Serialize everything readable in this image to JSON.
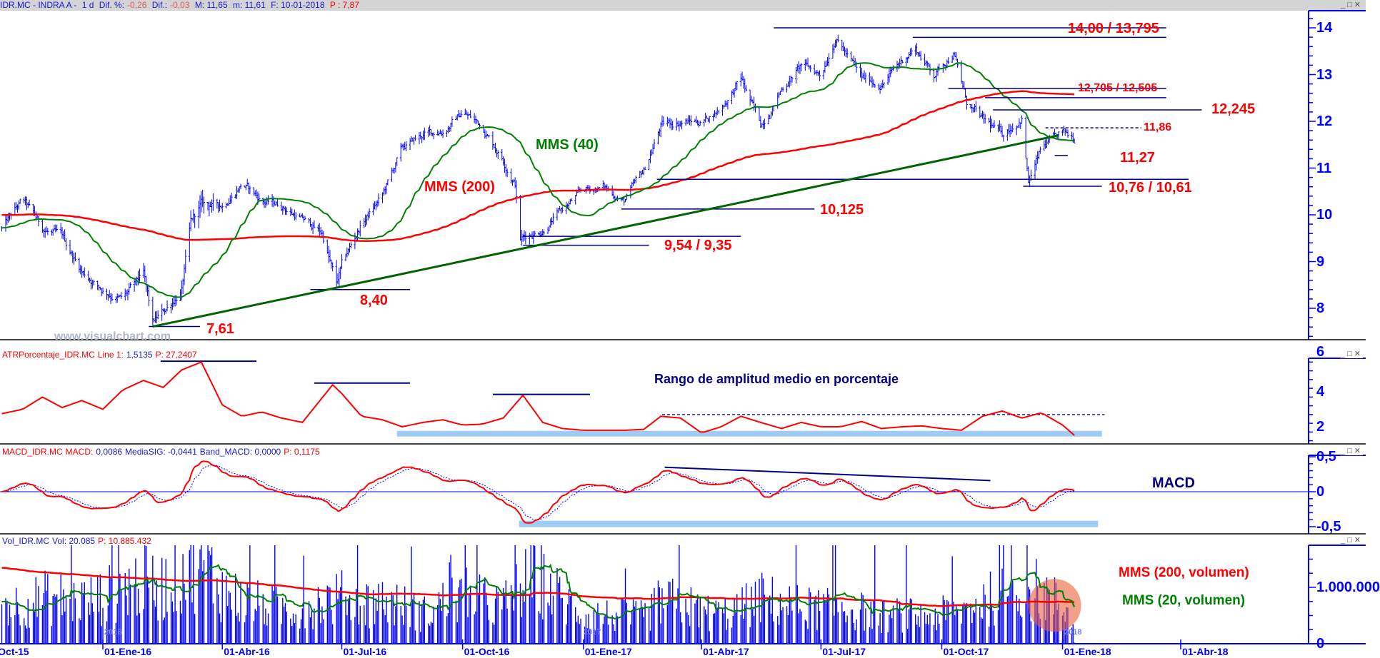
{
  "header": {
    "symbol": "IDR.MC - INDRA A -",
    "period": "1 d",
    "dif_pct_label": "Dif. %:",
    "dif_pct": "-0,26",
    "dif_label": "Dif.:",
    "dif": "-0,03",
    "max_label": "M: 11,65",
    "min_label": "m: 11,61",
    "date_label": "F: 10-01-2018",
    "p_label": "P : 7,87"
  },
  "window_controls": "_□✕",
  "colors": {
    "price_bars": "#0000ff",
    "mms40": "#008000",
    "mms200": "#ff0000",
    "levels": "#000080",
    "trendline": "#006400",
    "atr": "#ff0000",
    "macd": "#ff0000",
    "signal": "#0000ff",
    "volume": "#0000ff",
    "highlight": "#9fcbf5"
  },
  "main": {
    "watermark": "www.visualchart.com",
    "mms40_label": "MMS (40)",
    "mms200_label": "MMS (200)",
    "axis_labels": [
      "14",
      "13",
      "12",
      "11",
      "10",
      "9",
      "8"
    ],
    "levels": [
      {
        "label": "14,00 / 13,795",
        "lines": [
          {
            "price": 14.0,
            "from": "2017-05-26",
            "to": "2018-03-21"
          },
          {
            "price": 13.795,
            "from": "2017-09-09",
            "to": "2018-03-21"
          }
        ]
      },
      {
        "label": "12,705 / 12,505",
        "lines": [
          {
            "price": 12.705,
            "from": "2017-10-06",
            "to": "2018-03-21"
          },
          {
            "price": 12.505,
            "from": "2017-11-03",
            "to": "2018-03-21"
          }
        ]
      },
      {
        "label": "12,245",
        "lines": [
          {
            "price": 12.245,
            "from": "2017-11-09",
            "to": "2018-04-17"
          }
        ]
      },
      {
        "label": "11,86",
        "lines": [
          {
            "price": 11.86,
            "from": "2017-12-19",
            "to": "2018-03-02",
            "dashed": true
          }
        ]
      },
      {
        "label": "11,27",
        "lines": [
          {
            "price": 11.27,
            "from": "2017-12-26",
            "to": "2018-01-05"
          }
        ]
      },
      {
        "label": "10,76 / 10,61",
        "lines": [
          {
            "price": 10.76,
            "from": "2017-02-26",
            "to": "2018-04-07"
          },
          {
            "price": 10.61,
            "from": "2017-12-02",
            "to": "2018-01-31"
          }
        ]
      },
      {
        "label": "10,125",
        "lines": [
          {
            "price": 10.125,
            "from": "2017-01-30",
            "to": "2017-06-26"
          }
        ]
      },
      {
        "label": "9,54 / 9,35",
        "lines": [
          {
            "price": 9.54,
            "from": "2016-11-16",
            "to": "2017-05-01"
          },
          {
            "price": 9.35,
            "from": "2016-11-16",
            "to": "2017-02-20"
          }
        ]
      },
      {
        "label": "8,40",
        "lines": [
          {
            "price": 8.4,
            "from": "2016-06-07",
            "to": "2016-08-22"
          }
        ]
      },
      {
        "label": "7,61",
        "lines": [
          {
            "price": 7.61,
            "from": "2016-02-05",
            "to": "2016-03-15"
          }
        ]
      }
    ],
    "trendline": [
      {
        "date": "2016-02-08",
        "price": 7.61
      },
      {
        "date": "2017-12-29",
        "price": 11.7
      }
    ]
  },
  "atr_panel": {
    "name": "ATRPorcentaje_IDR.MC",
    "line_label": "Line 1:",
    "line_value": "1,5135",
    "p": "P: 27,2407",
    "title": "Rango de amplitud medio en porcentaje",
    "axis_labels": [
      "6",
      "4",
      "2"
    ],
    "levels": [
      {
        "value": 5.75,
        "from": "2016-02-14",
        "to": "2016-04-27"
      },
      {
        "value": 4.5,
        "from": "2016-06-10",
        "to": "2016-08-22"
      },
      {
        "value": 3.85,
        "from": "2016-10-24",
        "to": "2017-01-06"
      },
      {
        "value": 2.7,
        "from": "2017-03-02",
        "to": "2018-02-02",
        "dashed": true
      }
    ],
    "band": {
      "value": 1.6,
      "from": "2016-08-12",
      "to": "2018-01-31"
    }
  },
  "macd_panel": {
    "name": "MACD_IDR.MC",
    "macd_label": "MACD:",
    "macd": "0,0086",
    "signal": "MediaSIG: -0,0441",
    "band": "Band_MACD: 0,0000",
    "p": "P: 0,1175",
    "title": "MACD",
    "axis_labels": [
      "0,5",
      "0",
      "-0,5"
    ],
    "divergence_line": [
      {
        "date": "2017-03-04",
        "value": 0.35
      },
      {
        "date": "2017-11-07",
        "value": 0.16
      }
    ],
    "band_zone": {
      "value": -0.46,
      "from": "2016-11-13",
      "to": "2018-01-28"
    }
  },
  "volume_panel": {
    "name": "Vol_IDR.MC",
    "vol": "Vol: 20.085",
    "p": "P: 10.885.432",
    "mms200_label": "MMS (200, volumen)",
    "mms20_label": "MMS (20, volumen)",
    "axis_labels": [
      "1.000.000",
      "0"
    ],
    "highlight": {
      "date": "2017-12-26",
      "volume_millions": 0.68
    }
  },
  "x_axis": {
    "labels": [
      {
        "date": "2015-10-01",
        "text": "01-Oct-15"
      },
      {
        "date": "2016-01-01",
        "text": "01-Ene-16"
      },
      {
        "date": "2016-04-01",
        "text": "01-Abr-16"
      },
      {
        "date": "2016-07-01",
        "text": "01-Jul-16"
      },
      {
        "date": "2016-10-01",
        "text": "01-Oct-16"
      },
      {
        "date": "2017-01-01",
        "text": "01-Ene-17"
      },
      {
        "date": "2017-04-01",
        "text": "01-Abr-17"
      },
      {
        "date": "2017-07-01",
        "text": "01-Jul-17"
      },
      {
        "date": "2017-10-01",
        "text": "01-Oct-17"
      },
      {
        "date": "2018-01-01",
        "text": "01-Ene-18"
      },
      {
        "date": "2018-04-01",
        "text": "01-Abr-18"
      }
    ],
    "years": [
      "2016",
      "2017",
      "2018"
    ]
  },
  "chart_data": {
    "type": "ohlc",
    "x_range": [
      "2015-10-16",
      "2018-01-10"
    ],
    "price_ylim": [
      7.3,
      14.4
    ],
    "grid": false,
    "price_close": [
      [
        "2015-10-16",
        9.7
      ],
      [
        "2015-11-01",
        10.3
      ],
      [
        "2015-11-16",
        9.7
      ],
      [
        "2015-12-01",
        9.5
      ],
      [
        "2015-12-16",
        8.8
      ],
      [
        "2016-01-01",
        8.4
      ],
      [
        "2016-01-16",
        8.2
      ],
      [
        "2016-02-01",
        8.7
      ],
      [
        "2016-02-08",
        7.65
      ],
      [
        "2016-02-16",
        7.9
      ],
      [
        "2016-03-01",
        8.4
      ],
      [
        "2016-03-08",
        9.8
      ],
      [
        "2016-03-16",
        10.2
      ],
      [
        "2016-04-01",
        10.2
      ],
      [
        "2016-04-16",
        10.7
      ],
      [
        "2016-05-01",
        10.3
      ],
      [
        "2016-05-16",
        10.2
      ],
      [
        "2016-06-01",
        9.9
      ],
      [
        "2016-06-16",
        9.6
      ],
      [
        "2016-06-27",
        8.5
      ],
      [
        "2016-07-01",
        8.9
      ],
      [
        "2016-07-16",
        9.8
      ],
      [
        "2016-08-01",
        10.4
      ],
      [
        "2016-08-16",
        11.4
      ],
      [
        "2016-09-01",
        11.7
      ],
      [
        "2016-09-16",
        11.8
      ],
      [
        "2016-10-01",
        12.2
      ],
      [
        "2016-10-16",
        11.9
      ],
      [
        "2016-11-01",
        11.2
      ],
      [
        "2016-11-10",
        10.7
      ],
      [
        "2016-11-14",
        9.5
      ],
      [
        "2016-12-01",
        9.7
      ],
      [
        "2016-12-16",
        10.1
      ],
      [
        "2017-01-01",
        10.5
      ],
      [
        "2017-01-16",
        10.6
      ],
      [
        "2017-02-01",
        10.3
      ],
      [
        "2017-02-16",
        10.9
      ],
      [
        "2017-03-01",
        11.9
      ],
      [
        "2017-03-16",
        12.0
      ],
      [
        "2017-04-01",
        12.0
      ],
      [
        "2017-04-16",
        12.3
      ],
      [
        "2017-05-01",
        12.9
      ],
      [
        "2017-05-16",
        11.9
      ],
      [
        "2017-06-01",
        12.7
      ],
      [
        "2017-06-16",
        13.2
      ],
      [
        "2017-07-01",
        13.0
      ],
      [
        "2017-07-12",
        13.85
      ],
      [
        "2017-08-01",
        12.9
      ],
      [
        "2017-08-16",
        12.8
      ],
      [
        "2017-09-01",
        13.3
      ],
      [
        "2017-09-10",
        13.6
      ],
      [
        "2017-09-25",
        13.0
      ],
      [
        "2017-10-10",
        13.5
      ],
      [
        "2017-10-20",
        12.4
      ],
      [
        "2017-11-01",
        12.0
      ],
      [
        "2017-11-16",
        11.7
      ],
      [
        "2017-12-01",
        12.1
      ],
      [
        "2017-12-06",
        10.7
      ],
      [
        "2017-12-16",
        11.4
      ],
      [
        "2018-01-01",
        11.7
      ],
      [
        "2018-01-10",
        11.63
      ]
    ],
    "atr_percent": [
      [
        "2015-10-16",
        2.75
      ],
      [
        "2015-11-01",
        3.0
      ],
      [
        "2015-11-16",
        3.7
      ],
      [
        "2015-12-01",
        3.1
      ],
      [
        "2015-12-16",
        3.5
      ],
      [
        "2016-01-01",
        3.0
      ],
      [
        "2016-01-16",
        4.1
      ],
      [
        "2016-02-01",
        4.65
      ],
      [
        "2016-02-16",
        4.25
      ],
      [
        "2016-03-01",
        5.25
      ],
      [
        "2016-03-16",
        5.7
      ],
      [
        "2016-04-01",
        3.25
      ],
      [
        "2016-04-16",
        2.6
      ],
      [
        "2016-05-01",
        2.85
      ],
      [
        "2016-05-16",
        2.5
      ],
      [
        "2016-06-01",
        2.25
      ],
      [
        "2016-06-24",
        4.4
      ],
      [
        "2016-07-01",
        3.9
      ],
      [
        "2016-07-16",
        2.6
      ],
      [
        "2016-08-01",
        2.4
      ],
      [
        "2016-08-16",
        2.0
      ],
      [
        "2016-09-01",
        2.25
      ],
      [
        "2016-09-16",
        2.4
      ],
      [
        "2016-10-01",
        2.1
      ],
      [
        "2016-10-16",
        2.15
      ],
      [
        "2016-11-01",
        2.5
      ],
      [
        "2016-11-16",
        3.8
      ],
      [
        "2016-12-01",
        2.25
      ],
      [
        "2016-12-16",
        1.9
      ],
      [
        "2017-01-01",
        1.8
      ],
      [
        "2017-02-01",
        1.8
      ],
      [
        "2017-02-16",
        1.85
      ],
      [
        "2017-03-01",
        2.6
      ],
      [
        "2017-03-16",
        2.5
      ],
      [
        "2017-04-01",
        1.65
      ],
      [
        "2017-04-16",
        2.0
      ],
      [
        "2017-05-01",
        2.6
      ],
      [
        "2017-05-16",
        2.25
      ],
      [
        "2017-06-01",
        1.9
      ],
      [
        "2017-06-16",
        2.25
      ],
      [
        "2017-07-01",
        2.0
      ],
      [
        "2017-07-16",
        2.0
      ],
      [
        "2017-08-01",
        2.3
      ],
      [
        "2017-08-16",
        1.9
      ],
      [
        "2017-09-01",
        2.0
      ],
      [
        "2017-09-16",
        2.05
      ],
      [
        "2017-10-01",
        1.9
      ],
      [
        "2017-10-16",
        1.8
      ],
      [
        "2017-11-01",
        2.6
      ],
      [
        "2017-11-16",
        2.9
      ],
      [
        "2017-12-01",
        2.5
      ],
      [
        "2017-12-16",
        2.8
      ],
      [
        "2018-01-01",
        2.1
      ],
      [
        "2018-01-10",
        1.51
      ]
    ],
    "volume_mms20_millions": [
      [
        "2015-10-16",
        0.75
      ],
      [
        "2015-11-01",
        0.72
      ],
      [
        "2015-11-16",
        0.85
      ],
      [
        "2015-12-01",
        0.85
      ],
      [
        "2015-12-16",
        0.8
      ],
      [
        "2016-01-01",
        0.85
      ],
      [
        "2016-01-16",
        1.05
      ],
      [
        "2016-02-01",
        1.15
      ],
      [
        "2016-02-16",
        1.05
      ],
      [
        "2016-03-01",
        1.4
      ],
      [
        "2016-03-16",
        1.55
      ],
      [
        "2016-04-01",
        1.0
      ],
      [
        "2016-04-16",
        0.8
      ],
      [
        "2016-05-01",
        0.72
      ],
      [
        "2016-05-16",
        0.65
      ],
      [
        "2016-06-01",
        0.65
      ],
      [
        "2016-06-16",
        0.8
      ],
      [
        "2016-07-01",
        0.85
      ],
      [
        "2016-07-16",
        0.75
      ],
      [
        "2016-08-01",
        0.8
      ],
      [
        "2016-08-16",
        0.7
      ],
      [
        "2016-09-01",
        0.55
      ],
      [
        "2016-09-16",
        0.75
      ],
      [
        "2016-10-01",
        0.9
      ],
      [
        "2016-10-16",
        0.8
      ],
      [
        "2016-11-01",
        0.7
      ],
      [
        "2016-11-16",
        1.1
      ],
      [
        "2016-12-01",
        1.2
      ],
      [
        "2016-12-16",
        0.8
      ],
      [
        "2017-01-01",
        0.55
      ],
      [
        "2017-02-16",
        0.5
      ],
      [
        "2017-03-01",
        0.78
      ],
      [
        "2017-03-16",
        0.75
      ],
      [
        "2017-04-01",
        0.6
      ],
      [
        "2017-04-16",
        0.55
      ],
      [
        "2017-05-01",
        0.65
      ],
      [
        "2017-05-16",
        0.85
      ],
      [
        "2017-06-01",
        0.75
      ],
      [
        "2017-06-16",
        0.68
      ],
      [
        "2017-07-01",
        0.65
      ],
      [
        "2017-07-16",
        0.72
      ],
      [
        "2017-08-01",
        0.6
      ],
      [
        "2017-08-16",
        0.5
      ],
      [
        "2017-09-01",
        0.55
      ],
      [
        "2017-09-16",
        0.5
      ],
      [
        "2017-10-01",
        0.55
      ],
      [
        "2017-10-16",
        0.6
      ],
      [
        "2017-11-01",
        0.8
      ],
      [
        "2017-11-16",
        0.9
      ],
      [
        "2017-12-01",
        1.1
      ],
      [
        "2017-12-16",
        0.95
      ],
      [
        "2018-01-01",
        0.7
      ],
      [
        "2018-01-10",
        0.6
      ]
    ],
    "series": [
      {
        "name": "MMS (40)"
      },
      {
        "name": "MMS (200)"
      },
      {
        "name": "MACD"
      },
      {
        "name": "MMS (200, volumen)"
      },
      {
        "name": "MMS (20, volumen)"
      }
    ]
  }
}
